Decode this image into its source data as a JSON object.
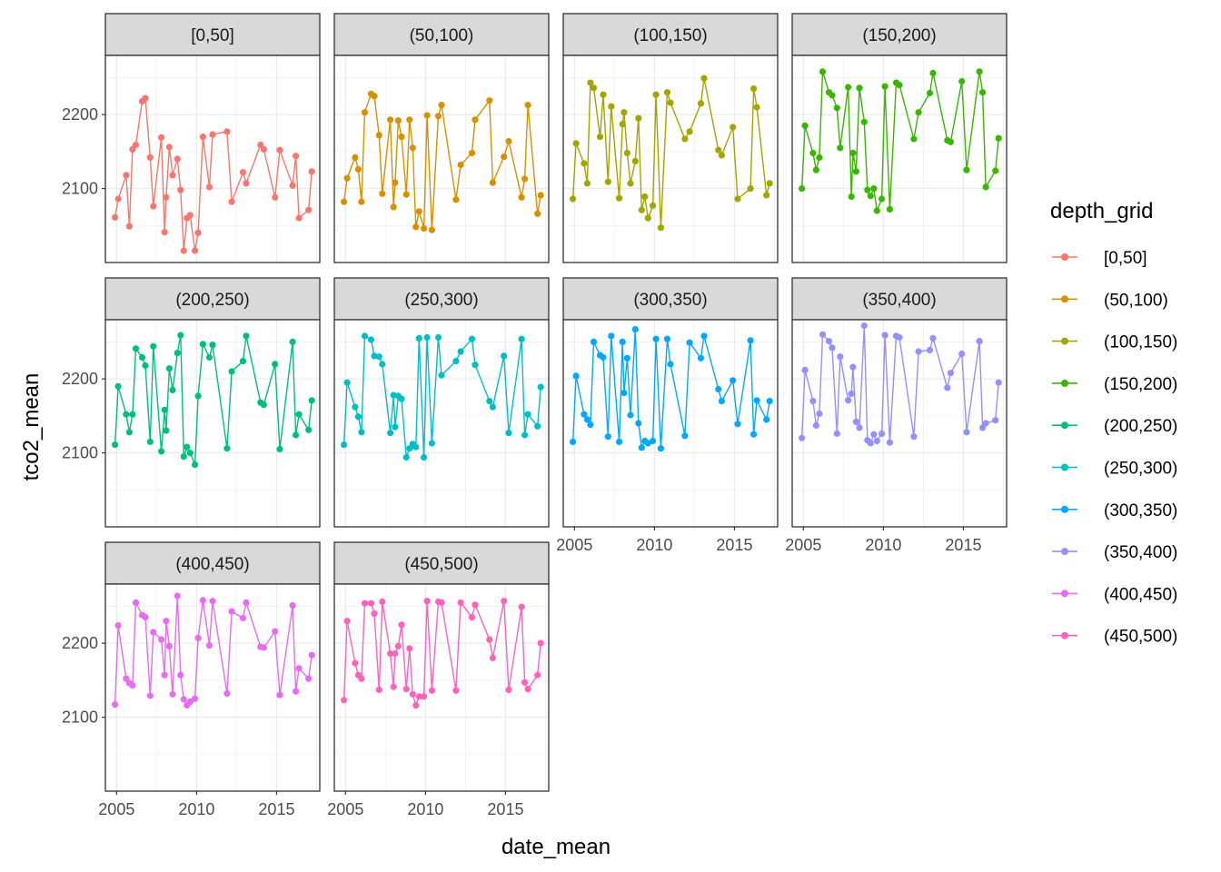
{
  "chart_data": {
    "type": "line",
    "xlabel": "date_mean",
    "ylabel": "tco2_mean",
    "xlim": [
      2004.3,
      2017.7
    ],
    "ylim": [
      2000,
      2280
    ],
    "x_ticks": [
      2005,
      2010,
      2015
    ],
    "y_ticks": [
      2100,
      2200
    ],
    "legend": {
      "title": "depth_grid",
      "placement": "right"
    },
    "grid": true,
    "x": [
      2004.9,
      2005.1,
      2005.6,
      2005.8,
      2006.0,
      2006.2,
      2006.6,
      2006.8,
      2007.1,
      2007.3,
      2007.8,
      2008.0,
      2008.1,
      2008.3,
      2008.5,
      2008.8,
      2009.0,
      2009.2,
      2009.4,
      2009.6,
      2009.9,
      2010.1,
      2010.4,
      2010.8,
      2011.0,
      2011.9,
      2012.2,
      2012.9,
      2013.1,
      2014.0,
      2014.2,
      2014.9,
      2015.2,
      2016.0,
      2016.2,
      2016.4,
      2017.0,
      2017.2
    ],
    "series": [
      {
        "name": "[0,50]",
        "color": "#F8766D",
        "values": [
          2061,
          2086,
          2118,
          2049,
          2153,
          2159,
          2218,
          2222,
          2142,
          2076,
          2169,
          2041,
          2088,
          2156,
          2118,
          2140,
          2098,
          2016,
          2060,
          2064,
          2016,
          2040,
          2170,
          2102,
          2173,
          2177,
          2082,
          2122,
          2107,
          2159,
          2153,
          2088,
          2152,
          2104,
          2144,
          2060,
          2071,
          2123
        ]
      },
      {
        "name": "(50,100)",
        "color": "#D89000",
        "values": [
          2082,
          2114,
          2142,
          2126,
          2082,
          2203,
          2228,
          2225,
          2172,
          2093,
          2193,
          2075,
          2108,
          2192,
          2170,
          2092,
          2193,
          2155,
          2048,
          2069,
          2046,
          2199,
          2044,
          2198,
          2213,
          2085,
          2132,
          2148,
          2193,
          2219,
          2108,
          2143,
          2164,
          2088,
          2113,
          2213,
          2066,
          2091
        ]
      },
      {
        "name": "(100,150)",
        "color": "#A3A500",
        "values": [
          2086,
          2161,
          2134,
          2107,
          2243,
          2236,
          2170,
          2227,
          2109,
          2211,
          2087,
          2187,
          2203,
          2148,
          2107,
          2137,
          2195,
          2071,
          2089,
          2060,
          2077,
          2227,
          2047,
          2230,
          2216,
          2167,
          2177,
          2215,
          2249,
          2152,
          2145,
          2183,
          2086,
          2100,
          2235,
          2210,
          2091,
          2107
        ]
      },
      {
        "name": "(150,200)",
        "color": "#39B600",
        "values": [
          2100,
          2185,
          2148,
          2125,
          2142,
          2258,
          2230,
          2226,
          2209,
          2155,
          2237,
          2089,
          2148,
          2123,
          2236,
          2190,
          2098,
          2090,
          2100,
          2070,
          2086,
          2238,
          2072,
          2243,
          2240,
          2167,
          2203,
          2229,
          2256,
          2165,
          2163,
          2245,
          2125,
          2258,
          2230,
          2102,
          2124,
          2168
        ]
      },
      {
        "name": "(200,250)",
        "color": "#00BF7D",
        "values": [
          2111,
          2190,
          2152,
          2128,
          2152,
          2241,
          2229,
          2218,
          2115,
          2244,
          2102,
          2158,
          2130,
          2214,
          2185,
          2235,
          2259,
          2095,
          2108,
          2100,
          2084,
          2177,
          2247,
          2229,
          2246,
          2106,
          2210,
          2224,
          2258,
          2168,
          2165,
          2220,
          2105,
          2250,
          2124,
          2152,
          2131,
          2171
        ]
      },
      {
        "name": "(250,300)",
        "color": "#00BFC4",
        "values": [
          2111,
          2195,
          2162,
          2149,
          2128,
          2258,
          2253,
          2231,
          2230,
          2220,
          2127,
          2178,
          2135,
          2177,
          2173,
          2094,
          2106,
          2112,
          2108,
          2255,
          2094,
          2256,
          2113,
          2256,
          2205,
          2224,
          2237,
          2254,
          2219,
          2170,
          2162,
          2231,
          2127,
          2254,
          2124,
          2152,
          2136,
          2189
        ]
      },
      {
        "name": "(300,350)",
        "color": "#00A9FF",
        "values": [
          2115,
          2204,
          2152,
          2145,
          2138,
          2250,
          2232,
          2229,
          2122,
          2258,
          2115,
          2250,
          2181,
          2228,
          2151,
          2267,
          2140,
          2107,
          2116,
          2113,
          2116,
          2254,
          2106,
          2254,
          2220,
          2123,
          2249,
          2228,
          2258,
          2186,
          2170,
          2198,
          2139,
          2252,
          2125,
          2171,
          2145,
          2170
        ]
      },
      {
        "name": "(350,400)",
        "color": "#9590FF",
        "values": [
          2120,
          2212,
          2170,
          2137,
          2153,
          2260,
          2251,
          2242,
          2126,
          2230,
          2171,
          2180,
          2216,
          2142,
          2134,
          2272,
          2117,
          2113,
          2125,
          2116,
          2126,
          2259,
          2114,
          2258,
          2256,
          2122,
          2237,
          2239,
          2255,
          2188,
          2208,
          2234,
          2128,
          2251,
          2134,
          2140,
          2144,
          2195
        ]
      },
      {
        "name": "(400,450)",
        "color": "#E76BF3",
        "values": [
          2117,
          2224,
          2152,
          2146,
          2143,
          2255,
          2238,
          2235,
          2129,
          2215,
          2205,
          2157,
          2230,
          2196,
          2131,
          2264,
          2157,
          2124,
          2116,
          2121,
          2125,
          2207,
          2258,
          2197,
          2257,
          2132,
          2243,
          2234,
          2255,
          2195,
          2194,
          2216,
          2130,
          2251,
          2135,
          2166,
          2152,
          2184
        ]
      },
      {
        "name": "(450,500)",
        "color": "#FF62BC",
        "values": [
          2123,
          2230,
          2173,
          2157,
          2152,
          2254,
          2254,
          2240,
          2137,
          2256,
          2186,
          2141,
          2186,
          2196,
          2225,
          2138,
          2193,
          2131,
          2116,
          2128,
          2128,
          2257,
          2136,
          2256,
          2255,
          2136,
          2255,
          2235,
          2252,
          2205,
          2180,
          2257,
          2137,
          2249,
          2147,
          2138,
          2157,
          2200
        ]
      }
    ]
  }
}
